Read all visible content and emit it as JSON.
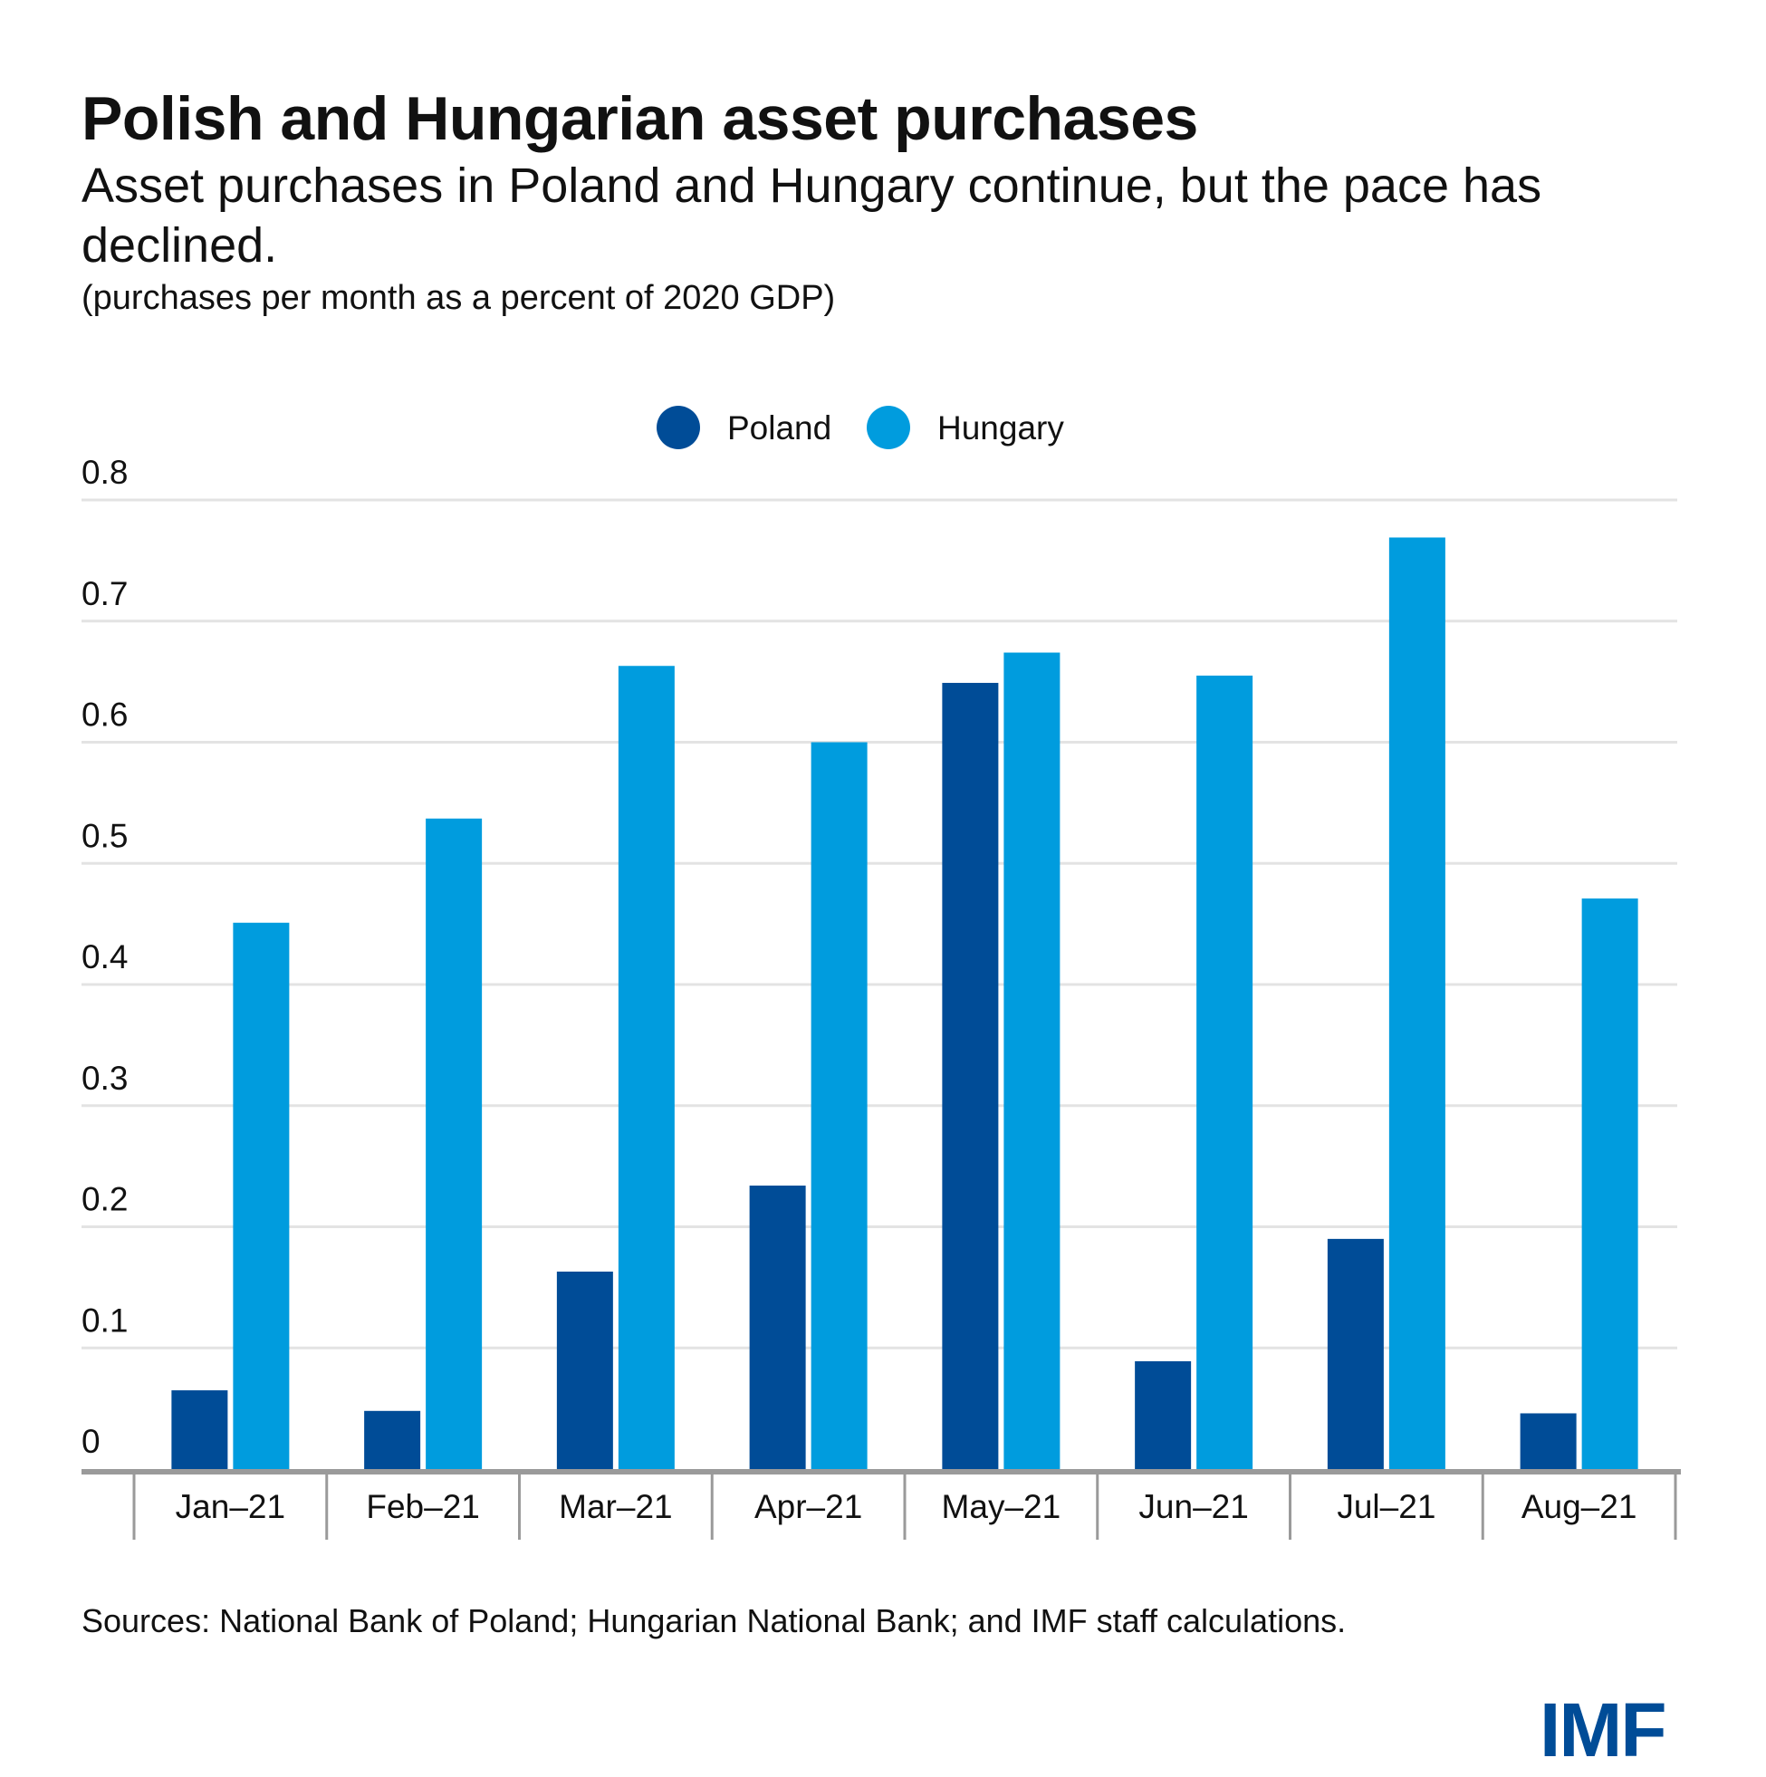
{
  "chart_data": {
    "type": "bar",
    "title": "Polish and Hungarian asset purchases",
    "subtitle": "Asset purchases in Poland and Hungary continue, but the pace has declined.",
    "units": "(purchases per month as a percent of 2020 GDP)",
    "categories": [
      "Jan-21",
      "Feb-21",
      "Mar-21",
      "Apr-21",
      "May-21",
      "Jun-21",
      "Jul-21",
      "Aug-21"
    ],
    "series": [
      {
        "name": "Poland",
        "color": "#004c97",
        "values": [
          0.065,
          0.048,
          0.163,
          0.234,
          0.649,
          0.089,
          0.19,
          0.046
        ]
      },
      {
        "name": "Hungary",
        "color": "#009cde",
        "values": [
          0.451,
          0.537,
          0.663,
          0.6,
          0.674,
          0.655,
          0.769,
          0.471
        ]
      }
    ],
    "ylim": [
      0,
      0.8
    ],
    "yticks": [
      "0",
      "0.1",
      "0.2",
      "0.3",
      "0.4",
      "0.5",
      "0.6",
      "0.7",
      "0.8"
    ],
    "grid": true,
    "legend": "top-center",
    "source": "Sources: National Bank of Poland; Hungarian National Bank; and IMF staff calculations.",
    "logo": "IMF"
  }
}
